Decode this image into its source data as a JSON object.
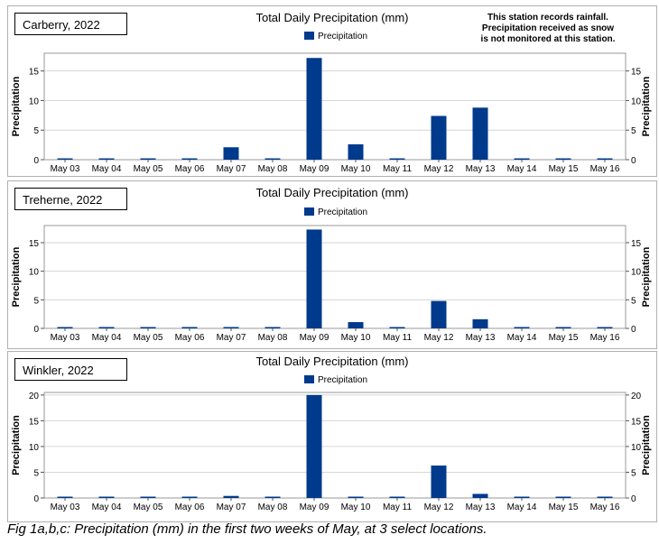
{
  "caption": "Fig 1a,b,c: Precipitation (mm) in the first two weeks of May, at 3 select locations.",
  "chart_data": [
    {
      "type": "bar",
      "station_label": "Carberry, 2022",
      "title": "Total Daily Precipitation (mm)",
      "note": [
        "This station records rainfall.",
        "Precipitation received as snow",
        "is not monitored at this station."
      ],
      "legend": "Precipitation",
      "ylabel": "Precipitation",
      "xlabel": "",
      "categories": [
        "May 03",
        "May 04",
        "May 05",
        "May 06",
        "May 07",
        "May 08",
        "May 09",
        "May 10",
        "May 11",
        "May 12",
        "May 13",
        "May 14",
        "May 15",
        "May 16"
      ],
      "values": [
        0.1,
        0.1,
        0.1,
        0.2,
        2.1,
        0.1,
        17.2,
        2.6,
        0.1,
        7.4,
        8.8,
        0.2,
        0.1,
        0.1
      ],
      "ylim": [
        0,
        18
      ],
      "yticks": [
        0,
        5,
        10,
        15
      ],
      "bar_color": "#003a8c",
      "grid": true
    },
    {
      "type": "bar",
      "station_label": "Treherne, 2022",
      "title": "Total Daily Precipitation (mm)",
      "legend": "Precipitation",
      "ylabel": "Precipitation",
      "xlabel": "",
      "categories": [
        "May 03",
        "May 04",
        "May 05",
        "May 06",
        "May 07",
        "May 08",
        "May 09",
        "May 10",
        "May 11",
        "May 12",
        "May 13",
        "May 14",
        "May 15",
        "May 16"
      ],
      "values": [
        0.1,
        0.1,
        0.1,
        0.1,
        0.2,
        0.1,
        17.3,
        1.1,
        0.1,
        4.8,
        1.6,
        0.1,
        0.1,
        0.1
      ],
      "ylim": [
        0,
        18
      ],
      "yticks": [
        0,
        5,
        10,
        15
      ],
      "bar_color": "#003a8c",
      "grid": true
    },
    {
      "type": "bar",
      "station_label": "Winkler, 2022",
      "title": "Total Daily Precipitation (mm)",
      "legend": "Precipitation",
      "ylabel": "Precipitation",
      "xlabel": "",
      "categories": [
        "May 03",
        "May 04",
        "May 05",
        "May 06",
        "May 07",
        "May 08",
        "May 09",
        "May 10",
        "May 11",
        "May 12",
        "May 13",
        "May 14",
        "May 15",
        "May 16"
      ],
      "values": [
        0.1,
        0.1,
        0.1,
        0.1,
        0.4,
        0.1,
        20.0,
        0.1,
        0.1,
        6.3,
        0.8,
        0.1,
        0.1,
        0.1
      ],
      "ylim": [
        0,
        20.5
      ],
      "yticks": [
        0,
        5,
        10,
        15,
        20
      ],
      "bar_color": "#003a8c",
      "grid": true
    }
  ]
}
